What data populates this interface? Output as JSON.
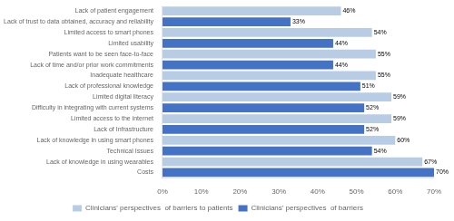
{
  "chart_data": {
    "type": "bar",
    "orientation": "horizontal",
    "categories": [
      "Lack of patient engagement",
      "Lack of trust to data obtained, accuracy and reliability",
      "Limited access to smart phones",
      "Limited usability",
      "Patients want to be seen face-to-face",
      "Lack of time and/or prior work commitments",
      "Inadequate healthcare",
      "Lack of professional knowledge",
      "Limited digital literacy",
      "Difficulty in integrating with current systems",
      "Limited access to the internet",
      "Lack of Infrastructure",
      "Lack of knowledge in using smart phones",
      "Technical Issues",
      "Lack of knowledge in using wearables",
      "Costs"
    ],
    "series": [
      {
        "name": "Clinicians' perspectives  of barriers to patients",
        "color": "#b8cce4",
        "values": [
          46,
          null,
          54,
          null,
          55,
          null,
          55,
          null,
          59,
          null,
          59,
          null,
          60,
          null,
          67,
          null
        ],
        "value_labels": [
          "46%",
          null,
          "54%",
          null,
          "55%",
          null,
          "55%",
          null,
          "59%",
          null,
          "59%",
          null,
          "60%",
          null,
          "67%",
          null
        ]
      },
      {
        "name": "Clinicians' perspectives  of barriers",
        "color": "#4472c4",
        "values": [
          null,
          33,
          null,
          44,
          null,
          44,
          null,
          51,
          null,
          52,
          null,
          52,
          null,
          54,
          null,
          70
        ],
        "value_labels": [
          null,
          "33%",
          null,
          "44%",
          null,
          "44%",
          null,
          "51%",
          null,
          "52%",
          null,
          "52%",
          null,
          "54%",
          null,
          "70%"
        ]
      }
    ],
    "xlim": [
      0,
      70
    ],
    "xticks": [
      {
        "value": 0,
        "label": "0%"
      },
      {
        "value": 10,
        "label": "10%"
      },
      {
        "value": 20,
        "label": "20%"
      },
      {
        "value": 30,
        "label": "30%"
      },
      {
        "value": 40,
        "label": "40%"
      },
      {
        "value": 50,
        "label": "50%"
      },
      {
        "value": 60,
        "label": "60%"
      },
      {
        "value": 70,
        "label": "70%"
      }
    ],
    "grid": false,
    "legend": "bottom",
    "data_labels": true
  }
}
